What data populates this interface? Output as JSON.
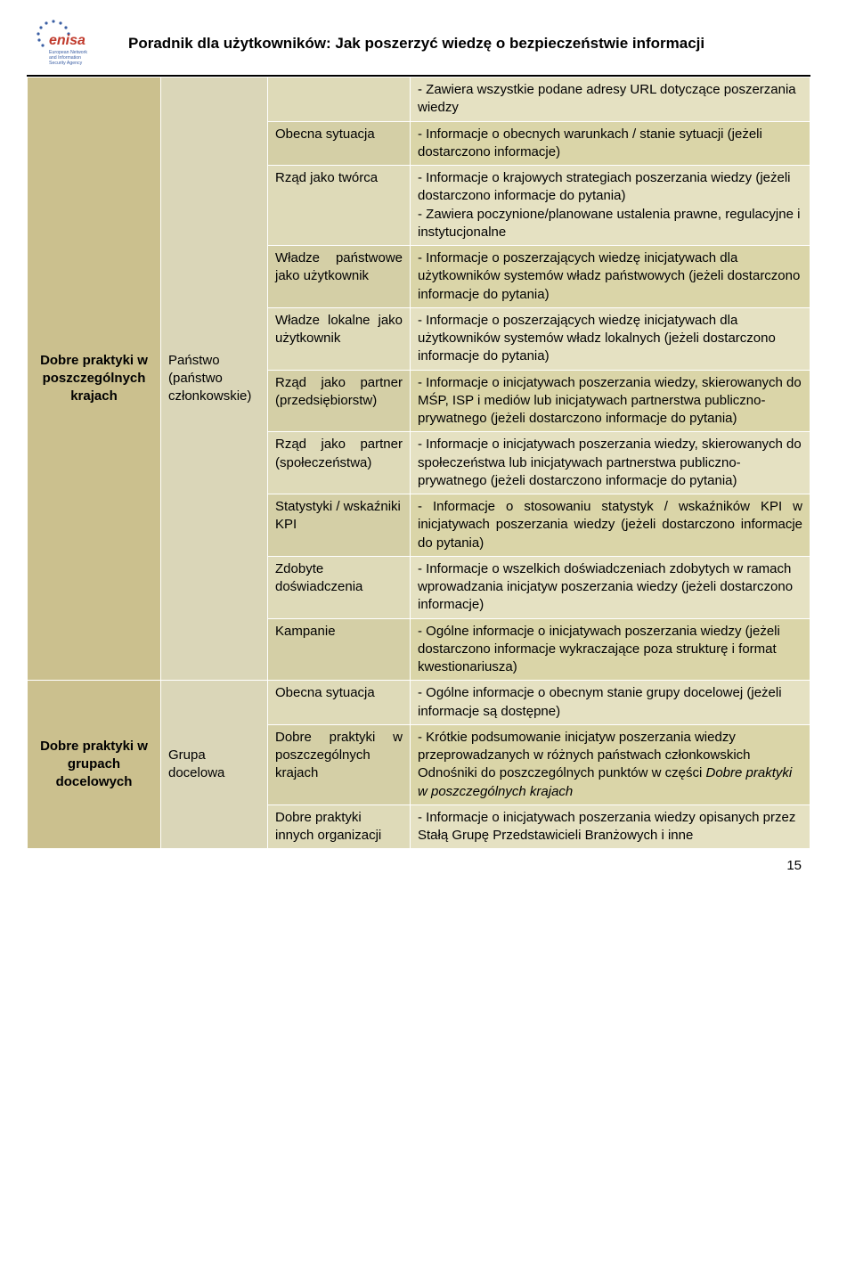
{
  "header": {
    "title": "Poradnik dla użytkowników: Jak poszerzyć wiedzę o bezpieczeństwie informacji",
    "logo_text_main": "enisa",
    "logo_text_sub": "European Network and Information Security Agency",
    "star_color": "#3b5fa4",
    "logo_red": "#c0392b"
  },
  "page_number": "15",
  "sections": [
    {
      "label": "Dobre praktyki w poszczególnych krajach",
      "group": "Państwo (państwo członkowskie)",
      "rows": [
        {
          "c3": "",
          "c4": "- Zawiera wszystkie podane adresy URL dotyczące poszerzania wiedzy",
          "alt": true
        },
        {
          "c3": "Obecna sytuacja",
          "c4": "- Informacje o obecnych warunkach / stanie sytuacji (jeżeli dostarczono informacje)"
        },
        {
          "c3": "Rząd jako twórca",
          "c4": "- Informacje o krajowych strategiach poszerzania wiedzy (jeżeli dostarczono informacje do pytania)\n- Zawiera poczynione/planowane ustalenia prawne, regulacyjne i instytucjonalne",
          "alt": true
        },
        {
          "c3": "Władze państwowe jako użytkownik",
          "c4": "- Informacje o poszerzających wiedzę inicjatywach dla użytkowników systemów władz państwowych (jeżeli dostarczono informacje do pytania)",
          "c3_just": true
        },
        {
          "c3": "Władze lokalne jako użytkownik",
          "c4": "- Informacje o poszerzających wiedzę inicjatywach dla użytkowników systemów władz lokalnych (jeżeli dostarczono informacje do pytania)",
          "alt": true,
          "c3_just": true
        },
        {
          "c3": "Rząd jako partner (przedsiębiorstw)",
          "c4": "- Informacje o inicjatywach poszerzania wiedzy, skierowanych do MŚP, ISP i mediów lub inicjatywach partnerstwa publiczno-prywatnego (jeżeli dostarczono informacje do pytania)",
          "c3_just": true
        },
        {
          "c3": "Rząd jako partner (społeczeństwa)",
          "c4": "- Informacje o inicjatywach poszerzania wiedzy, skierowanych do społeczeństwa lub inicjatywach partnerstwa publiczno-prywatnego (jeżeli dostarczono informacje do pytania)",
          "alt": true,
          "c3_just": true
        },
        {
          "c3": "Statystyki / wskaźniki KPI",
          "c4": "- Informacje o stosowaniu statystyk / wskaźników KPI w inicjatywach poszerzania wiedzy (jeżeli dostarczono informacje do pytania)",
          "c4_just": true
        },
        {
          "c3": "Zdobyte doświadczenia",
          "c4": "- Informacje o wszelkich doświadczeniach zdobytych w ramach wprowadzania inicjatyw poszerzania wiedzy (jeżeli dostarczono informacje)",
          "alt": true
        },
        {
          "c3": "Kampanie",
          "c4": "- Ogólne informacje o inicjatywach poszerzania wiedzy (jeżeli dostarczono informacje wykraczające poza strukturę i format kwestionariusza)"
        }
      ]
    },
    {
      "label": "Dobre praktyki w grupach docelowych",
      "group": "Grupa docelowa",
      "rows": [
        {
          "c3": "Obecna sytuacja",
          "c4": "- Ogólne informacje o obecnym stanie grupy docelowej (jeżeli informacje są dostępne)",
          "alt": true
        },
        {
          "c3": "Dobre praktyki w poszczególnych krajach",
          "c4": "- Krótkie podsumowanie inicjatyw poszerzania wiedzy przeprowadzanych w różnych państwach członkowskich Odnośniki do poszczególnych punktów w części <i>Dobre praktyki w poszczególnych krajach</i>",
          "c3_just": true,
          "html": true
        },
        {
          "c3": "Dobre praktyki innych organizacji",
          "c4": "- Informacje o inicjatywach poszerzania wiedzy opisanych przez Stałą Grupę Przedstawicieli Branżowych i inne",
          "alt": true
        }
      ]
    }
  ]
}
